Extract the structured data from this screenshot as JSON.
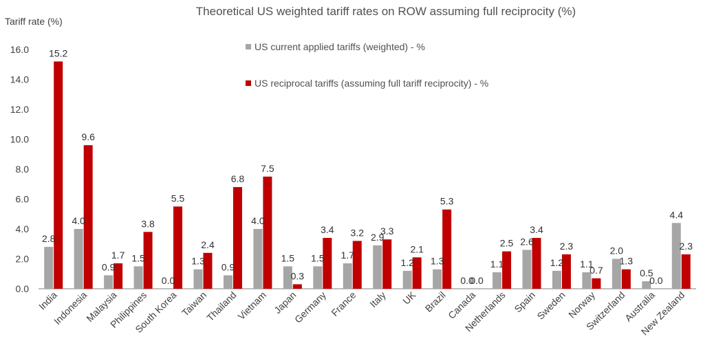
{
  "chart_data": {
    "type": "bar",
    "title": "Theoretical US weighted tariff rates on ROW assuming full reciprocity (%)",
    "ylabel": "Tariff rate (%)",
    "xlabel": "",
    "ylim": [
      0,
      16
    ],
    "yticks": [
      "0.0",
      "2.0",
      "4.0",
      "6.0",
      "8.0",
      "10.0",
      "12.0",
      "14.0",
      "16.0"
    ],
    "grid": false,
    "legend_position": "top-center",
    "categories": [
      "India",
      "Indonesia",
      "Malaysia",
      "Philippines",
      "South Korea",
      "Taiwan",
      "Thailand",
      "Vietnam",
      "Japan",
      "Germany",
      "France",
      "Italy",
      "UK",
      "Brazil",
      "Canada",
      "Netherlands",
      "Spain",
      "Sweden",
      "Norway",
      "Switzerland",
      "Australia",
      "New Zealand"
    ],
    "series": [
      {
        "name": "US current applied tariffs (weighted) - %",
        "color": "#a6a6a6",
        "values": [
          2.8,
          4.0,
          0.9,
          1.5,
          0.0,
          1.3,
          0.9,
          4.0,
          1.5,
          1.5,
          1.7,
          2.9,
          1.2,
          1.3,
          0.0,
          1.1,
          2.6,
          1.2,
          1.1,
          2.0,
          0.5,
          4.4
        ],
        "labels": [
          "2.8",
          "4.0",
          "0.9",
          "1.5",
          "0.0",
          "1.3",
          "0.9",
          "4.0",
          "1.5",
          "1.5",
          "1.7",
          "2.9",
          "1.2",
          "1.3",
          "0.0",
          "1.1",
          "2.6",
          "1.2",
          "1.1",
          "2.0",
          "0.5",
          "4.4"
        ]
      },
      {
        "name": "US reciprocal tariffs (assuming full tariff reciprocity) - %",
        "color": "#c00000",
        "values": [
          15.2,
          9.6,
          1.7,
          3.8,
          5.5,
          2.4,
          6.8,
          7.5,
          0.3,
          3.4,
          3.2,
          3.3,
          2.1,
          5.3,
          0.0,
          2.5,
          3.4,
          2.3,
          0.7,
          1.3,
          0.0,
          2.3
        ],
        "labels": [
          "15.2",
          "9.6",
          "1.7",
          "3.8",
          "5.5",
          "2.4",
          "6.8",
          "7.5",
          "0.3",
          "3.4",
          "3.2",
          "3.3",
          "2.1",
          "5.3",
          "0.0",
          "2.5",
          "3.4",
          "2.3",
          "0.7",
          "1.3",
          "0.0",
          "2.3"
        ]
      }
    ]
  }
}
